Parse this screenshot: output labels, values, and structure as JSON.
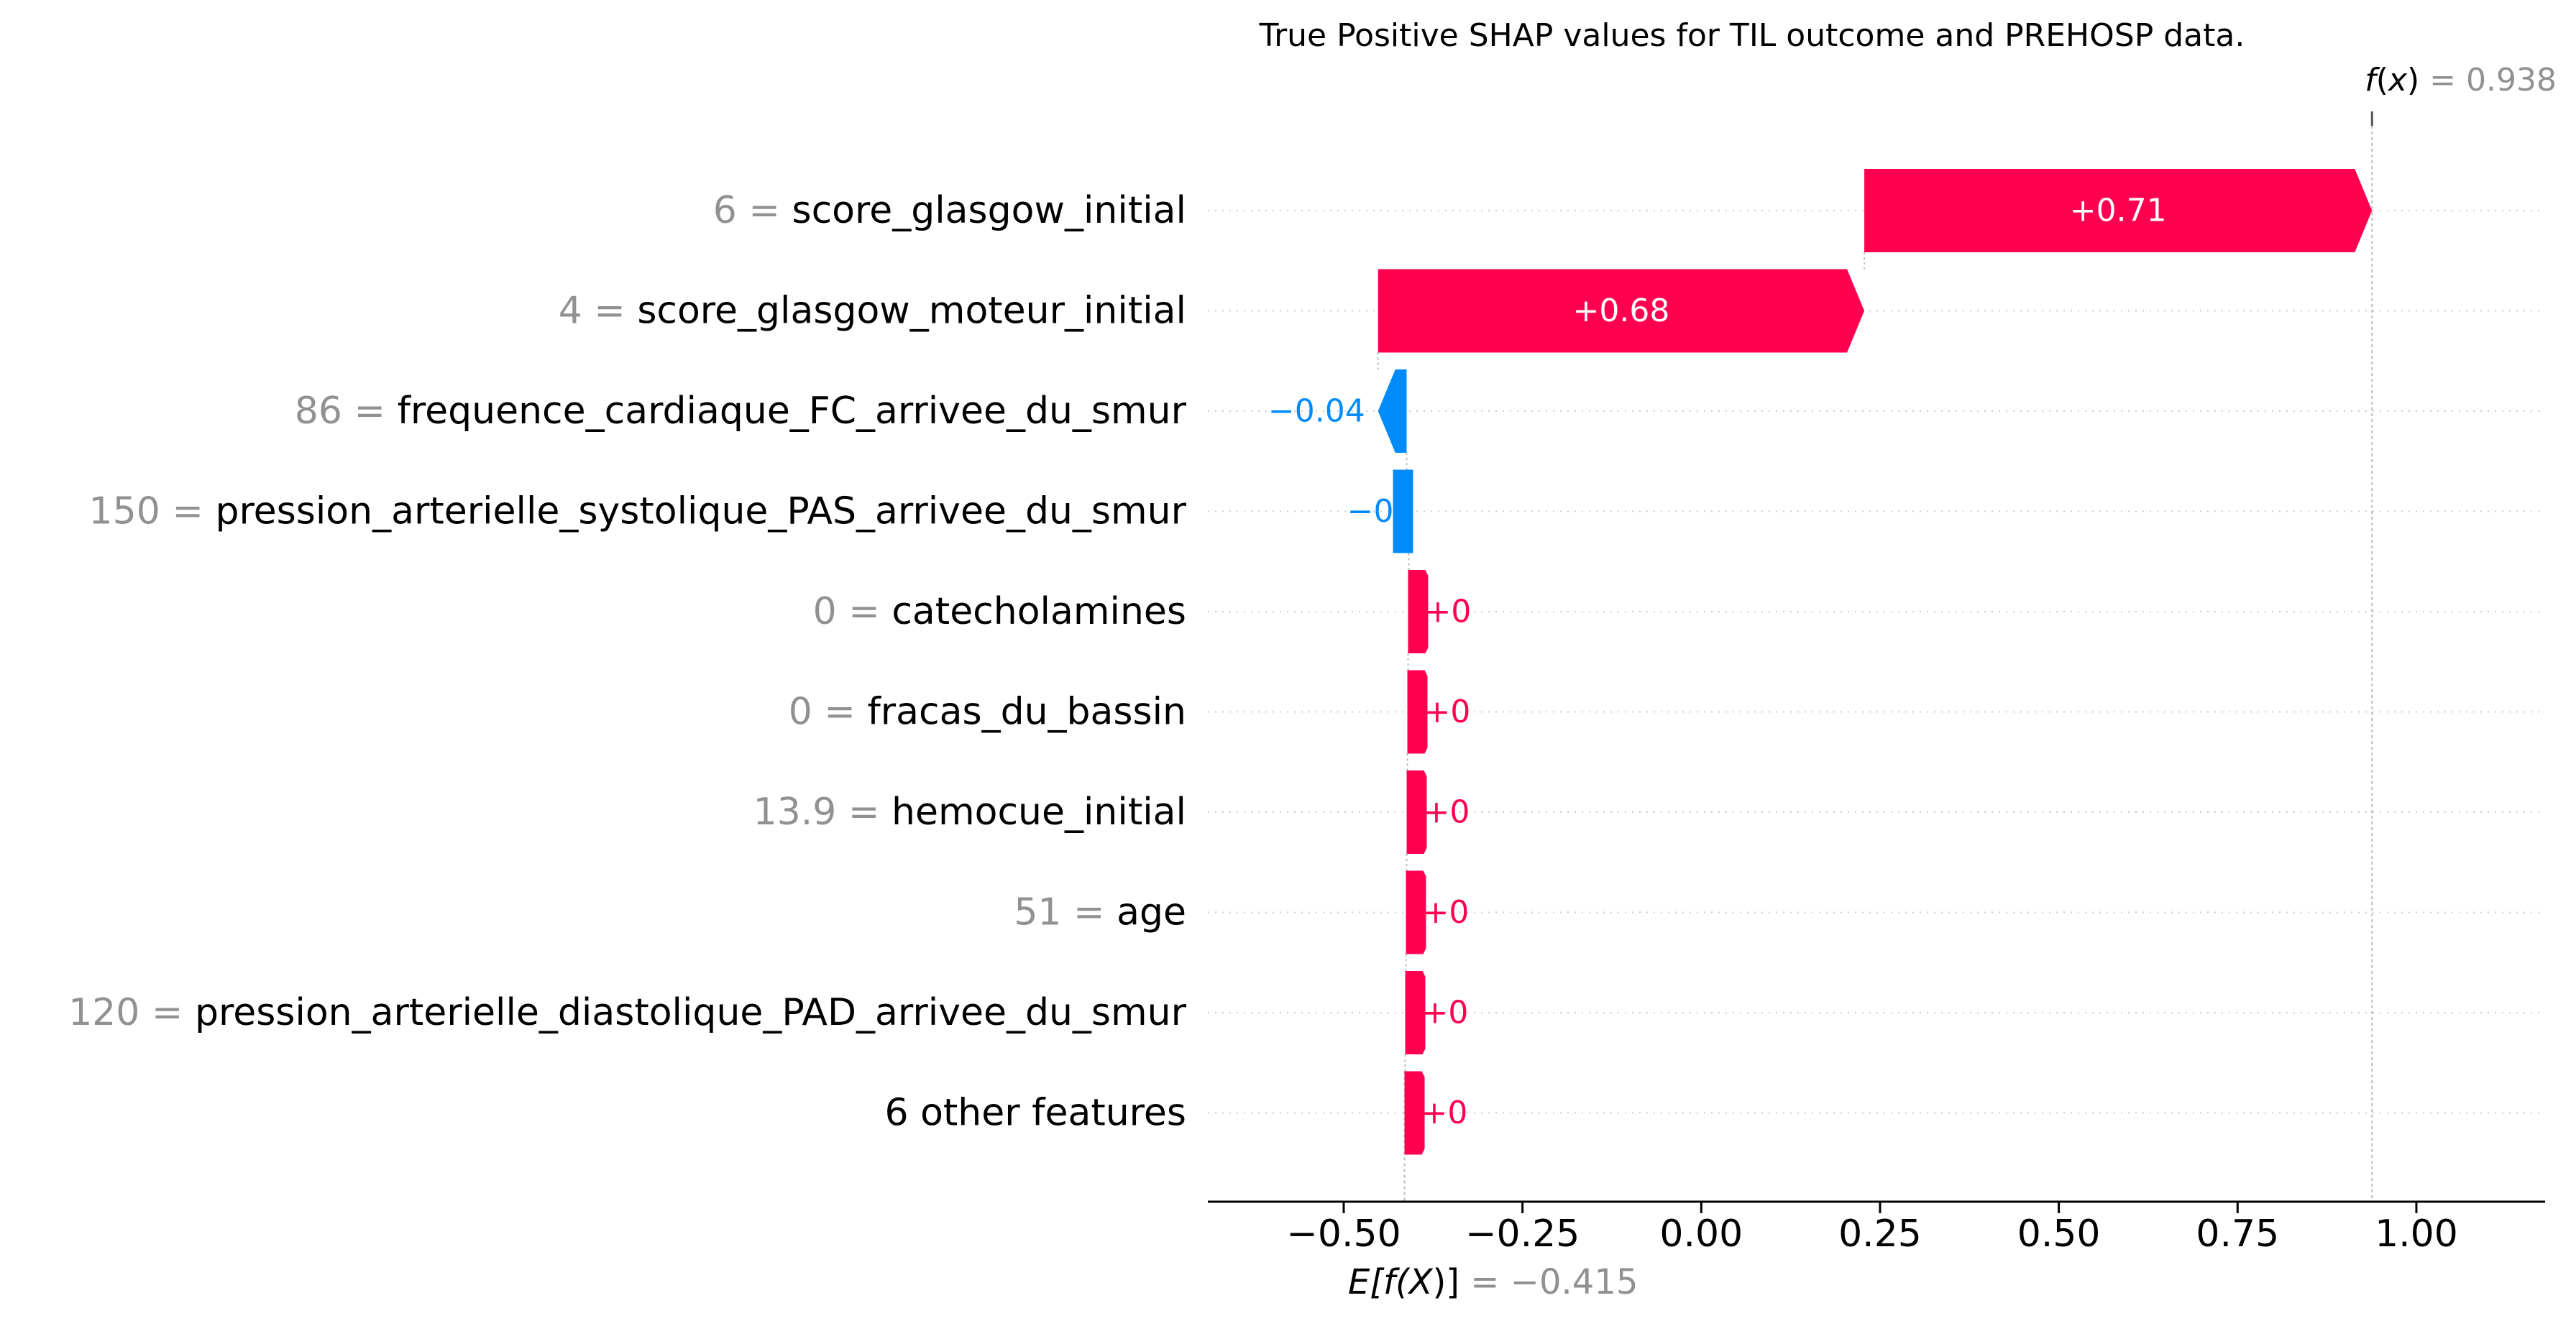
{
  "chart_data": {
    "type": "waterfall",
    "title": "True Positive SHAP values for TIL outcome and PREHOSP data.",
    "fx": {
      "prefix": "f",
      "arg": "x",
      "value_text": "= 0.938",
      "value": 0.938
    },
    "base": {
      "prefix": "E[f(",
      "arg": "X",
      "suffix": ")]",
      "value_text": "= −0.415",
      "value": -0.415
    },
    "xlim": [
      -0.69,
      1.18
    ],
    "ticks": [
      {
        "value": -0.5,
        "label": "−0.50"
      },
      {
        "value": -0.25,
        "label": "−0.25"
      },
      {
        "value": 0.0,
        "label": "0.00"
      },
      {
        "value": 0.25,
        "label": "0.25"
      },
      {
        "value": 0.5,
        "label": "0.50"
      },
      {
        "value": 0.75,
        "label": "0.75"
      },
      {
        "value": 1.0,
        "label": "1.00"
      }
    ],
    "colors": {
      "positive": "#ff0051",
      "negative": "#008bfb",
      "value_label": "#919191",
      "axis": "#000000"
    },
    "features": [
      {
        "value_label": "6",
        "name": "score_glasgow_initial",
        "shap": 0.71,
        "start": 0.228,
        "end": 0.938,
        "label": "+0.71",
        "label_inside": true
      },
      {
        "value_label": "4",
        "name": "score_glasgow_moteur_initial",
        "shap": 0.68,
        "start": -0.452,
        "end": 0.228,
        "label": "+0.68",
        "label_inside": true
      },
      {
        "value_label": "86",
        "name": "frequence_cardiaque_FC_arrivee_du_smur",
        "shap": -0.04,
        "start": -0.412,
        "end": -0.452,
        "label": "−0.04",
        "label_inside": false
      },
      {
        "value_label": "150",
        "name": "pression_arterielle_systolique_PAS_arrivee_du_smur",
        "shap": -0.003,
        "start": -0.409,
        "end": -0.412,
        "label": "−0",
        "label_inside": false
      },
      {
        "value_label": "0",
        "name": "catecholamines",
        "shap": 0.001,
        "start": -0.41,
        "end": -0.409,
        "label": "+0",
        "label_inside": false
      },
      {
        "value_label": "0",
        "name": "fracas_du_bassin",
        "shap": 0.001,
        "start": -0.411,
        "end": -0.41,
        "label": "+0",
        "label_inside": false
      },
      {
        "value_label": "13.9",
        "name": "hemocue_initial",
        "shap": 0.001,
        "start": -0.412,
        "end": -0.411,
        "label": "+0",
        "label_inside": false
      },
      {
        "value_label": "51",
        "name": "age",
        "shap": 0.001,
        "start": -0.413,
        "end": -0.412,
        "label": "+0",
        "label_inside": false
      },
      {
        "value_label": "120",
        "name": "pression_arterielle_diastolique_PAD_arrivee_du_smur",
        "shap": 0.001,
        "start": -0.414,
        "end": -0.413,
        "label": "+0",
        "label_inside": false
      },
      {
        "value_label": "",
        "name": "6 other features",
        "shap": 0.001,
        "start": -0.415,
        "end": -0.414,
        "label": "+0",
        "label_inside": false
      }
    ]
  }
}
